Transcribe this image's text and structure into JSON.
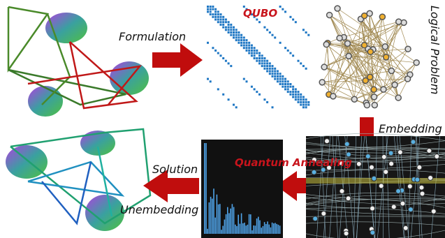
{
  "labels": {
    "formulation": "Formulation",
    "qubo": "QUBO",
    "logical_problem": "Logical Problem",
    "embedding": "Embedding",
    "quantum_annealing": "Quantum Annealing",
    "solution": "Solution",
    "unembedding": "Unembedding"
  }
}
